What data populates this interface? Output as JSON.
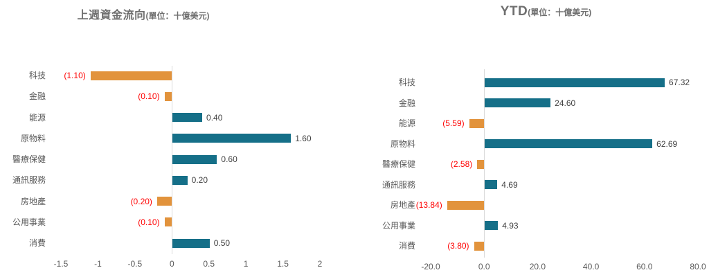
{
  "page": {
    "background_color": "#ffffff"
  },
  "colors": {
    "positive_bar": "#156f88",
    "negative_bar": "#e2933c",
    "negative_label": "#ff0000",
    "positive_label": "#3f3f3f",
    "axis_text": "#595959",
    "title_text": "#6f6f6f",
    "zero_line": "#d9d9d9"
  },
  "chart_data": [
    {
      "type": "bar",
      "orientation": "horizontal",
      "title": "上週資金流向",
      "unit_label": "(單位：十億美元)",
      "categories": [
        "科技",
        "金融",
        "能源",
        "原物料",
        "醫療保健",
        "通訊服務",
        "房地產",
        "公用事業",
        "消費"
      ],
      "values": [
        -1.1,
        -0.1,
        0.4,
        1.6,
        0.6,
        0.2,
        -0.2,
        -0.1,
        0.5
      ],
      "value_labels": [
        "(1.10)",
        "(0.10)",
        "0.40",
        "1.60",
        "0.60",
        "0.20",
        "(0.20)",
        "(0.10)",
        "0.50"
      ],
      "x_ticks": [
        -1.5,
        -1,
        -0.5,
        0,
        0.5,
        1,
        1.5,
        2
      ],
      "x_tick_labels": [
        "-1.5",
        "-1",
        "-0.5",
        "0",
        "0.5",
        "1",
        "1.5",
        "2"
      ],
      "xlim": [
        -1.5,
        2
      ],
      "legend": "none",
      "grid": "zero-line-only"
    },
    {
      "type": "bar",
      "orientation": "horizontal",
      "title": "YTD",
      "unit_label": "(單位：十億美元)",
      "categories": [
        "科技",
        "金融",
        "能源",
        "原物料",
        "醫療保健",
        "通訊服務",
        "房地產",
        "公用事業",
        "消費"
      ],
      "values": [
        67.32,
        24.6,
        -5.59,
        62.69,
        -2.58,
        4.69,
        -13.84,
        4.93,
        -3.8
      ],
      "value_labels": [
        "67.32",
        "24.60",
        "(5.59)",
        "62.69",
        "(2.58)",
        "4.69",
        "(13.84)",
        "4.93",
        "(3.80)"
      ],
      "x_ticks": [
        -20,
        0,
        20,
        40,
        60,
        80
      ],
      "x_tick_labels": [
        "-20.0",
        "0.0",
        "20.0",
        "40.0",
        "60.0",
        "80.0"
      ],
      "xlim": [
        -20,
        80
      ],
      "legend": "none",
      "grid": "zero-line-only"
    }
  ]
}
